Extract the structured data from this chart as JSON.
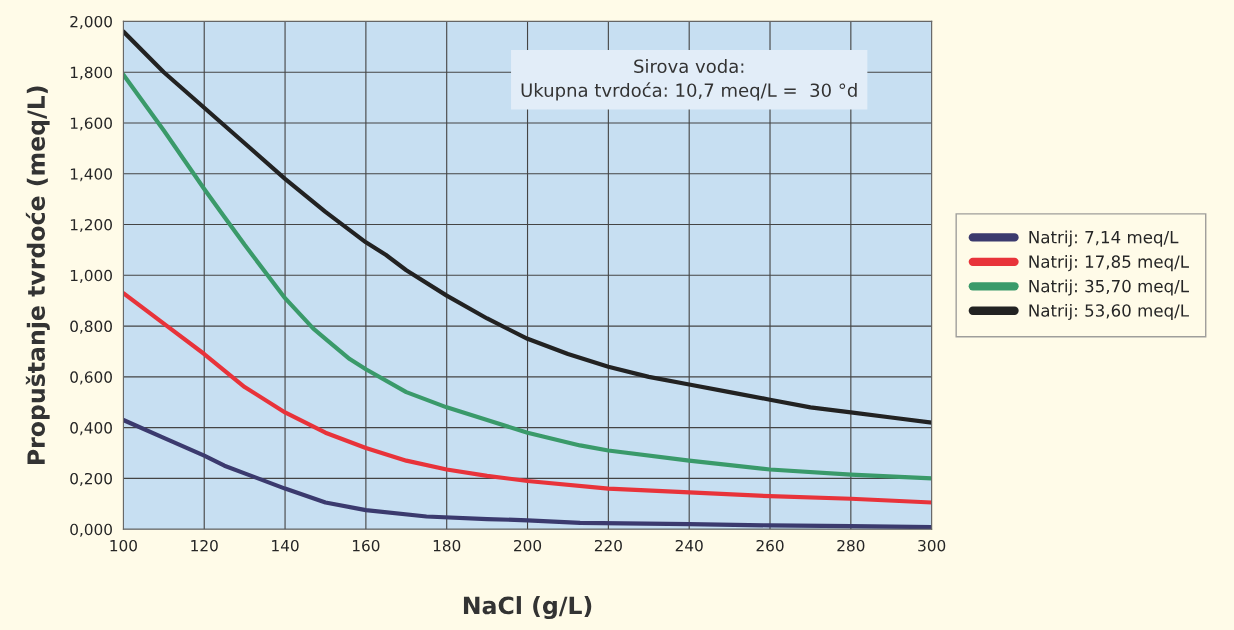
{
  "chart_data": {
    "type": "line",
    "xlabel": "NaCl (g/L)",
    "ylabel": "Propuštanje tvrdoće (meq/L)",
    "annotations": [
      "Sirova voda:\nUkupna tvrdoća: 10,7 meq/L =  30 °d"
    ],
    "series": [
      {
        "name": "Natrij: 7,14 meq/L",
        "color": "#3b3a6e",
        "x": [
          100,
          110,
          120,
          125,
          130,
          140,
          150,
          160,
          175,
          190,
          200,
          213,
          240,
          260,
          280,
          300
        ],
        "values": [
          0.43,
          0.36,
          0.29,
          0.25,
          0.22,
          0.16,
          0.105,
          0.075,
          0.05,
          0.04,
          0.035,
          0.025,
          0.02,
          0.015,
          0.012,
          0.008
        ]
      },
      {
        "name": "Natrij: 17,85 meq/L",
        "color": "#e8333a",
        "x": [
          100,
          110,
          120,
          130,
          140,
          150,
          160,
          170,
          180,
          190,
          200,
          220,
          240,
          260,
          280,
          300
        ],
        "values": [
          0.93,
          0.81,
          0.69,
          0.56,
          0.46,
          0.38,
          0.32,
          0.27,
          0.235,
          0.21,
          0.19,
          0.16,
          0.145,
          0.13,
          0.12,
          0.105
        ]
      },
      {
        "name": "Natrij: 35,70 meq/L",
        "color": "#3a9a6a",
        "x": [
          100,
          110,
          120,
          125,
          130,
          140,
          147,
          150,
          156,
          160,
          170,
          180,
          190,
          200,
          213,
          220,
          240,
          260,
          280,
          300
        ],
        "values": [
          1.79,
          1.57,
          1.34,
          1.23,
          1.12,
          0.91,
          0.79,
          0.75,
          0.67,
          0.63,
          0.54,
          0.48,
          0.43,
          0.38,
          0.33,
          0.31,
          0.27,
          0.235,
          0.215,
          0.2
        ]
      },
      {
        "name": "Natrij: 53,60 meq/L",
        "color": "#222222",
        "x": [
          100,
          110,
          120,
          125,
          130,
          140,
          150,
          160,
          165,
          170,
          180,
          190,
          200,
          210,
          220,
          230,
          240,
          250,
          260,
          270,
          280,
          290,
          300
        ],
        "values": [
          1.96,
          1.8,
          1.66,
          1.59,
          1.52,
          1.38,
          1.25,
          1.13,
          1.08,
          1.02,
          0.92,
          0.83,
          0.75,
          0.69,
          0.64,
          0.6,
          0.57,
          0.54,
          0.51,
          0.48,
          0.46,
          0.44,
          0.42
        ]
      }
    ],
    "xlim": [
      100,
      300
    ],
    "xticks": [
      100,
      120,
      140,
      160,
      180,
      200,
      220,
      240,
      260,
      280,
      300
    ],
    "ylim": [
      0,
      2
    ],
    "yticks": [
      {
        "value": 0,
        "label": "0,000"
      },
      {
        "value": 0.2,
        "label": "0,200"
      },
      {
        "value": 0.4,
        "label": "0,400"
      },
      {
        "value": 0.6,
        "label": "0,600"
      },
      {
        "value": 0.8,
        "label": "0,800"
      },
      {
        "value": 1.0,
        "label": "1,000"
      },
      {
        "value": 1.2,
        "label": "1,200"
      },
      {
        "value": 1.4,
        "label": "1,400"
      },
      {
        "value": 1.6,
        "label": "1,600"
      },
      {
        "value": 1.8,
        "label": "1,800"
      },
      {
        "value": 2.0,
        "label": "2,000"
      }
    ],
    "grid": true,
    "legend": "right",
    "marker": "none",
    "line_style": "solid"
  }
}
